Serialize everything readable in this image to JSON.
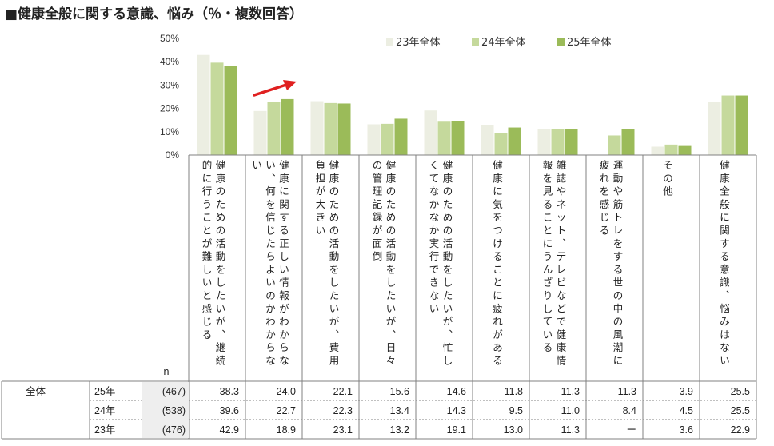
{
  "title": "■健康全般に関する意識、悩み（％・複数回答）",
  "chart_data": {
    "type": "bar",
    "ylim": [
      0,
      50
    ],
    "yticks": [
      "0%",
      "10%",
      "20%",
      "30%",
      "40%",
      "50%"
    ],
    "categories": [
      "健康のための活動をしたいが、継続的に行うことが難しいと感じる",
      "健康に関する正しい情報がわからない、何を信じたらよいのかわからない",
      "健康のための活動をしたいが、費用負担が大きい",
      "健康のための活動をしたいが、日々の管理記録が面倒",
      "健康のための活動をしたいが、忙しくてなかなか実行できない",
      "健康に気をつけることに疲れがある",
      "雑誌やネット、テレビなどで健康情報を見ることにうんざりしている",
      "運動や筋トレをする世の中の風潮に疲れを感じる",
      "その他",
      "健康全般に関する意識、悩みはない"
    ],
    "series": [
      {
        "name": "23年全体",
        "color": "#eceee2",
        "values": [
          42.9,
          18.9,
          23.1,
          13.2,
          19.1,
          13.0,
          11.3,
          null,
          3.6,
          22.9
        ]
      },
      {
        "name": "24年全体",
        "color": "#c5d99c",
        "values": [
          39.6,
          22.7,
          22.3,
          13.4,
          14.3,
          9.5,
          11.0,
          8.4,
          4.5,
          25.5
        ]
      },
      {
        "name": "25年全体",
        "color": "#9bbb59",
        "values": [
          38.3,
          24.0,
          22.1,
          15.6,
          14.6,
          11.8,
          11.3,
          11.3,
          3.9,
          25.5
        ]
      }
    ],
    "table": {
      "n_label": "n",
      "group_label": "全体",
      "rows": [
        {
          "year": "25年",
          "n": "(467)",
          "values": [
            "38.3",
            "24.0",
            "22.1",
            "15.6",
            "14.6",
            "11.8",
            "11.3",
            "11.3",
            "3.9",
            "25.5"
          ]
        },
        {
          "year": "24年",
          "n": "(538)",
          "values": [
            "39.6",
            "22.7",
            "22.3",
            "13.4",
            "14.3",
            "9.5",
            "11.0",
            "8.4",
            "4.5",
            "25.5"
          ]
        },
        {
          "year": "23年",
          "n": "(476)",
          "values": [
            "42.9",
            "18.9",
            "23.1",
            "13.2",
            "19.1",
            "13.0",
            "11.3",
            "ー",
            "3.6",
            "22.9"
          ]
        }
      ]
    },
    "arrow_color": "#e02020",
    "grid": false,
    "legend_position": "top-right"
  }
}
